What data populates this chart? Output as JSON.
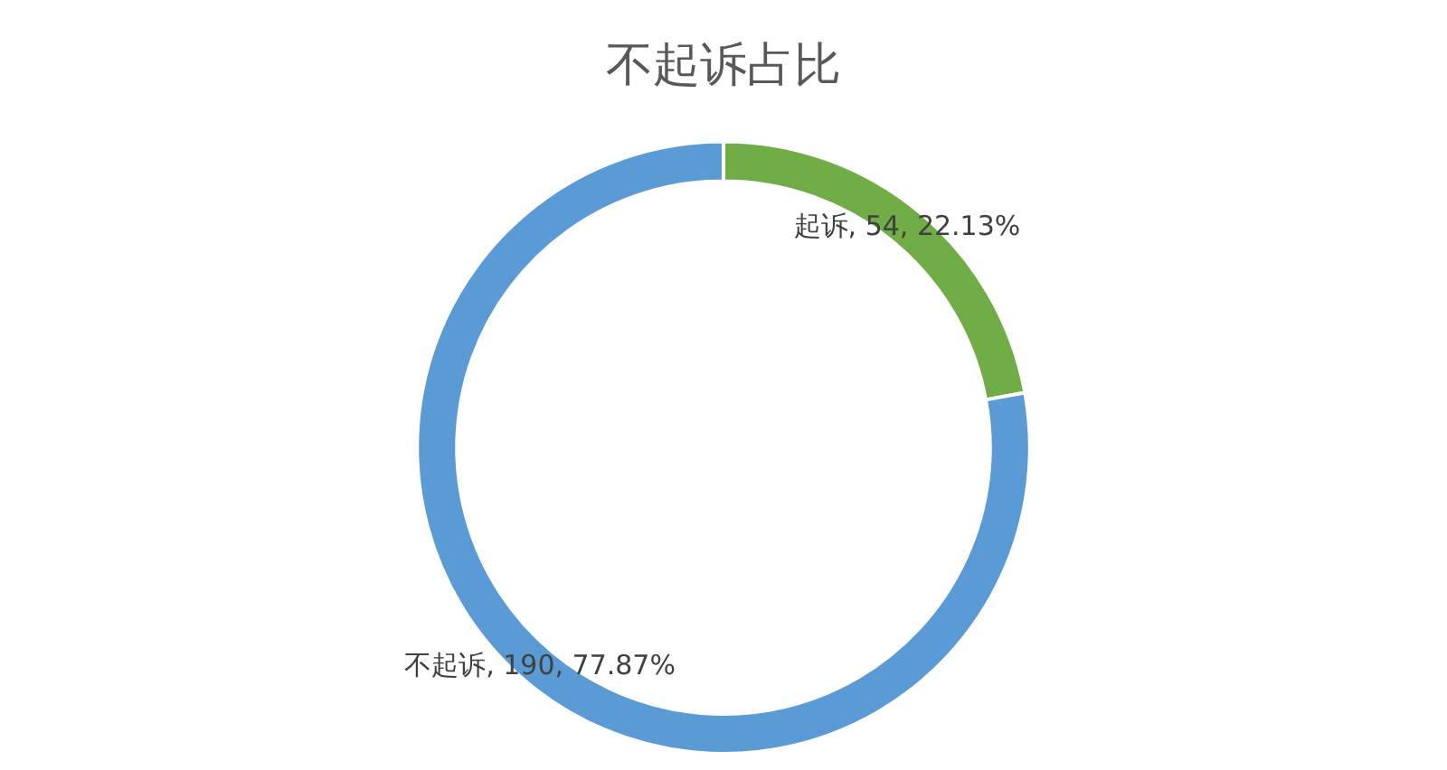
{
  "chart_data": {
    "type": "donut",
    "title": "不起诉占比",
    "categories": [
      "起诉",
      "不起诉"
    ],
    "values": [
      54,
      190
    ],
    "colors": [
      "#70ad47",
      "#5b9bd5"
    ],
    "value_labels": [
      "54, 22.13%",
      "190, 77.87%"
    ],
    "legend": false
  }
}
